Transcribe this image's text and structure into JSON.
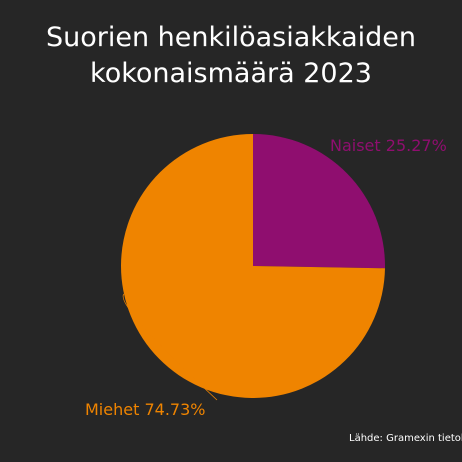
{
  "chart_data": {
    "type": "pie",
    "title": "Suorien henkilöasiakkaiden kokonaismäärä 2023",
    "categories": [
      "Naiset",
      "Miehet"
    ],
    "values": [
      25.27,
      74.73
    ],
    "value_labels": [
      "25.27%",
      "74.73%"
    ],
    "colors": [
      "#8f0e6f",
      "#ef8400"
    ],
    "source": "Lähde: Gramexin tietokanta, ti"
  }
}
